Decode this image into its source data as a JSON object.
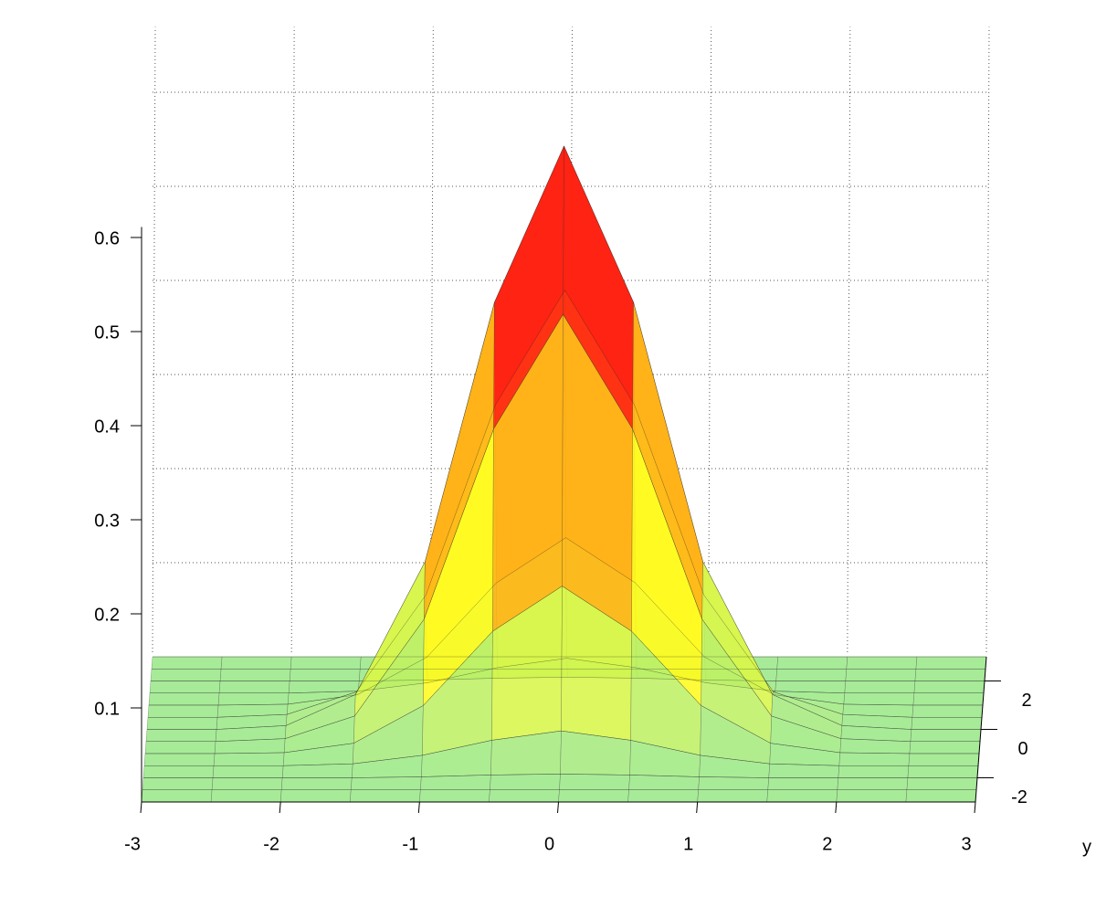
{
  "chart_data": {
    "type": "surface",
    "x": [
      -3,
      -2.5,
      -2,
      -1.5,
      -1,
      -0.5,
      0,
      0.5,
      1,
      1.5,
      2,
      2.5,
      3
    ],
    "y": [
      -3,
      -2.5,
      -2,
      -1.5,
      -1,
      -0.5,
      0,
      0.5,
      1,
      1.5,
      2,
      2.5,
      3
    ],
    "z": [
      [
        0,
        0,
        0,
        0,
        0,
        0,
        0,
        0,
        0,
        0,
        0,
        0,
        0
      ],
      [
        0,
        0,
        0,
        0,
        0,
        0,
        0,
        0,
        0,
        0,
        0,
        0,
        0
      ],
      [
        0,
        0,
        0,
        0,
        0.001,
        0.003,
        0.004,
        0.003,
        0.001,
        0,
        0,
        0,
        0
      ],
      [
        0,
        0,
        0,
        0.002,
        0.011,
        0.027,
        0.037,
        0.027,
        0.011,
        0.002,
        0,
        0,
        0
      ],
      [
        0,
        0,
        0.001,
        0.011,
        0.051,
        0.13,
        0.178,
        0.13,
        0.051,
        0.011,
        0.001,
        0,
        0
      ],
      [
        0,
        0,
        0.003,
        0.027,
        0.13,
        0.332,
        0.454,
        0.332,
        0.13,
        0.027,
        0.003,
        0,
        0
      ],
      [
        0,
        0,
        0.004,
        0.037,
        0.178,
        0.454,
        0.62,
        0.454,
        0.178,
        0.037,
        0.004,
        0,
        0
      ],
      [
        0,
        0,
        0.003,
        0.027,
        0.13,
        0.332,
        0.454,
        0.332,
        0.13,
        0.027,
        0.003,
        0,
        0
      ],
      [
        0,
        0,
        0.001,
        0.011,
        0.051,
        0.13,
        0.178,
        0.13,
        0.051,
        0.011,
        0.001,
        0,
        0
      ],
      [
        0,
        0,
        0,
        0.002,
        0.011,
        0.027,
        0.037,
        0.027,
        0.011,
        0.002,
        0,
        0,
        0
      ],
      [
        0,
        0,
        0,
        0,
        0.001,
        0.003,
        0.004,
        0.003,
        0.001,
        0,
        0,
        0,
        0
      ],
      [
        0,
        0,
        0,
        0,
        0,
        0,
        0,
        0,
        0,
        0,
        0,
        0,
        0
      ],
      [
        0,
        0,
        0,
        0,
        0,
        0,
        0,
        0,
        0,
        0,
        0,
        0,
        0
      ]
    ],
    "xlim": [
      -3,
      3
    ],
    "ylim": [
      -3,
      3
    ],
    "zlim": [
      0,
      0.65
    ],
    "xticks": [
      -3,
      -2,
      -1,
      0,
      1,
      2,
      3
    ],
    "yticks": [
      -2,
      0,
      2
    ],
    "zticks": [
      0.1,
      0.2,
      0.3,
      0.4,
      0.5,
      0.6
    ],
    "y_label": "y",
    "grid": true,
    "colormap": [
      "#9be88a",
      "#ffff20",
      "#ff9a10",
      "#ff2010",
      "#8a0a0a"
    ]
  }
}
